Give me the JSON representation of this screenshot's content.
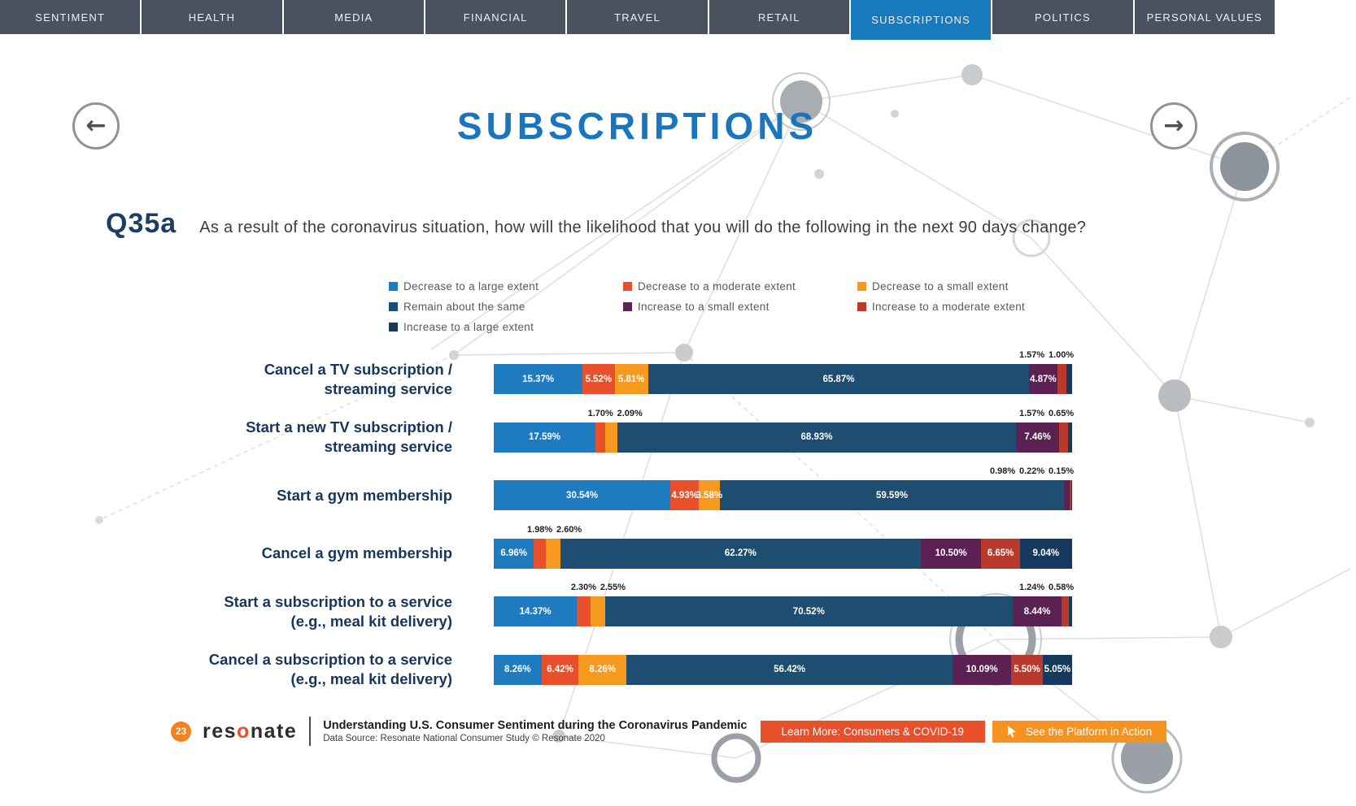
{
  "tabs": [
    "SENTIMENT",
    "HEALTH",
    "MEDIA",
    "FINANCIAL",
    "TRAVEL",
    "RETAIL",
    "SUBSCRIPTIONS",
    "POLITICS",
    "PERSONAL VALUES"
  ],
  "active_tab": "SUBSCRIPTIONS",
  "page": {
    "title": "SUBSCRIPTIONS"
  },
  "question": {
    "id": "Q35a",
    "text": "As a result of the coronavirus situation, how will the likelihood that you will do the following in the next 90 days change?"
  },
  "colors": {
    "accent_blue": "#1a75bc",
    "tab_bar": "#4a525f",
    "active_tab": "#1a7ac0",
    "learn_more_button": "#e8502b",
    "platform_button": "#f6921e",
    "page_badge": "#f58220"
  },
  "chart_data": {
    "type": "bar",
    "stacked": true,
    "orientation": "horizontal",
    "value_unit": "percent",
    "xlim": [
      0,
      100
    ],
    "grid": false,
    "legend_position": "top",
    "categories": [
      "Cancel a TV subscription /\nstreaming service",
      "Start a new TV subscription /\nstreaming service",
      "Start a gym membership",
      "Cancel a gym membership",
      "Start a subscription to a service\n(e.g., meal kit delivery)",
      "Cancel a subscription to a service\n(e.g., meal kit delivery)"
    ],
    "series": [
      {
        "name": "Decrease to a large extent",
        "color": "#1e7bc0",
        "values": [
          15.37,
          17.59,
          30.54,
          6.96,
          14.37,
          8.26
        ]
      },
      {
        "name": "Decrease to a moderate extent",
        "color": "#e8502b",
        "values": [
          5.52,
          1.7,
          4.93,
          1.98,
          2.3,
          6.42
        ]
      },
      {
        "name": "Decrease to a small extent",
        "color": "#f5991f",
        "values": [
          5.81,
          2.09,
          3.58,
          2.6,
          2.55,
          8.26
        ]
      },
      {
        "name": "Remain about the same",
        "color": "#1e4d72",
        "values": [
          65.87,
          68.93,
          59.59,
          62.27,
          70.52,
          56.42
        ]
      },
      {
        "name": "Increase to a small extent",
        "color": "#5b2153",
        "values": [
          4.87,
          7.46,
          0.98,
          10.5,
          8.44,
          10.09
        ]
      },
      {
        "name": "Increase to a moderate extent",
        "color": "#b73a2d",
        "values": [
          1.57,
          1.57,
          0.22,
          6.65,
          1.24,
          5.5
        ]
      },
      {
        "name": "Increase to a large extent",
        "color": "#153a5e",
        "values": [
          1.0,
          0.65,
          0.15,
          9.04,
          0.58,
          5.05
        ]
      }
    ]
  },
  "footer": {
    "page_number": "23",
    "brand": {
      "pre": "res",
      "o": "o",
      "post": "nate"
    },
    "title": "Understanding U.S. Consumer Sentiment during the Coronavirus Pandemic",
    "source": "Data Source: Resonate National Consumer Study © Resonate 2020",
    "learn_more": "Learn More: Consumers & COVID-19",
    "platform": "See the Platform in Action"
  }
}
